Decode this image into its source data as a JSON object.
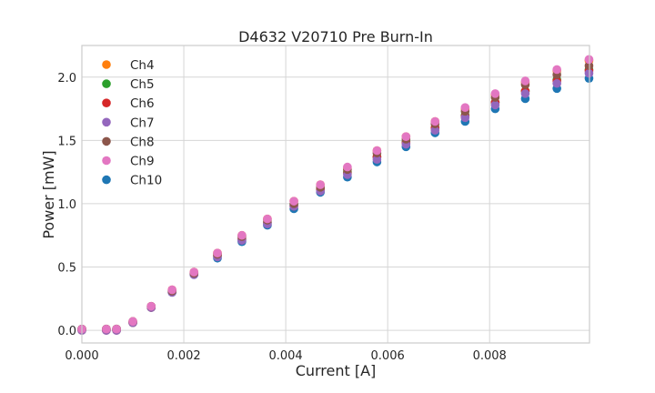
{
  "chart_data": {
    "type": "scatter",
    "title": "D4632 V20710 Pre Burn-In",
    "xlabel": "Current [A]",
    "ylabel": "Power [mW]",
    "xlim": [
      0,
      0.00996
    ],
    "ylim": [
      -0.1,
      2.25
    ],
    "xticks": [
      0,
      0.002,
      0.004,
      0.006,
      0.008
    ],
    "xtick_labels": [
      "0.000",
      "0.002",
      "0.004",
      "0.006",
      "0.008"
    ],
    "yticks": [
      0,
      0.5,
      1.0,
      1.5,
      2.0
    ],
    "ytick_labels": [
      "0.0",
      "0.5",
      "1.0",
      "1.5",
      "2.0"
    ],
    "grid": true,
    "legend_placement": "top-left",
    "x": [
      0,
      0.00048,
      0.00068,
      0.001,
      0.00136,
      0.00177,
      0.0022,
      0.00266,
      0.00314,
      0.00364,
      0.00416,
      0.00468,
      0.00521,
      0.00579,
      0.00636,
      0.00693,
      0.00752,
      0.00811,
      0.0087,
      0.00932,
      0.00995
    ],
    "series": [
      {
        "name": "Ch4",
        "color": "#ff7f0e",
        "values": [
          0.01,
          0.01,
          0.01,
          0.07,
          0.19,
          0.32,
          0.46,
          0.61,
          0.75,
          0.88,
          1.02,
          1.15,
          1.28,
          1.42,
          1.53,
          1.65,
          1.75,
          1.86,
          1.96,
          2.05,
          2.13
        ]
      },
      {
        "name": "Ch5",
        "color": "#2ca02c",
        "values": [
          0.01,
          0.01,
          0.01,
          0.06,
          0.18,
          0.31,
          0.45,
          0.59,
          0.72,
          0.85,
          0.99,
          1.12,
          1.25,
          1.37,
          1.49,
          1.6,
          1.7,
          1.8,
          1.89,
          1.98,
          2.06
        ]
      },
      {
        "name": "Ch6",
        "color": "#d62728",
        "values": [
          0.0,
          0.0,
          0.0,
          0.06,
          0.18,
          0.31,
          0.45,
          0.59,
          0.72,
          0.85,
          0.98,
          1.11,
          1.24,
          1.37,
          1.48,
          1.6,
          1.69,
          1.8,
          1.89,
          1.97,
          2.05
        ]
      },
      {
        "name": "Ch7",
        "color": "#9467bd",
        "values": [
          0.0,
          0.0,
          0.0,
          0.06,
          0.18,
          0.3,
          0.44,
          0.58,
          0.71,
          0.84,
          0.98,
          1.1,
          1.23,
          1.35,
          1.47,
          1.58,
          1.68,
          1.78,
          1.87,
          1.95,
          2.03
        ]
      },
      {
        "name": "Ch8",
        "color": "#8c564b",
        "values": [
          0.01,
          0.01,
          0.01,
          0.07,
          0.19,
          0.31,
          0.45,
          0.6,
          0.74,
          0.87,
          1.0,
          1.13,
          1.27,
          1.4,
          1.51,
          1.63,
          1.73,
          1.84,
          1.94,
          2.02,
          2.09
        ]
      },
      {
        "name": "Ch9",
        "color": "#e377c2",
        "values": [
          0.01,
          0.01,
          0.01,
          0.07,
          0.19,
          0.32,
          0.46,
          0.61,
          0.75,
          0.88,
          1.02,
          1.15,
          1.29,
          1.42,
          1.53,
          1.65,
          1.76,
          1.87,
          1.97,
          2.06,
          2.14
        ]
      },
      {
        "name": "Ch10",
        "color": "#1f77b4",
        "values": [
          0.0,
          0.0,
          0.0,
          0.06,
          0.18,
          0.3,
          0.44,
          0.57,
          0.7,
          0.83,
          0.96,
          1.09,
          1.21,
          1.33,
          1.45,
          1.56,
          1.65,
          1.75,
          1.83,
          1.91,
          1.99
        ]
      }
    ]
  }
}
